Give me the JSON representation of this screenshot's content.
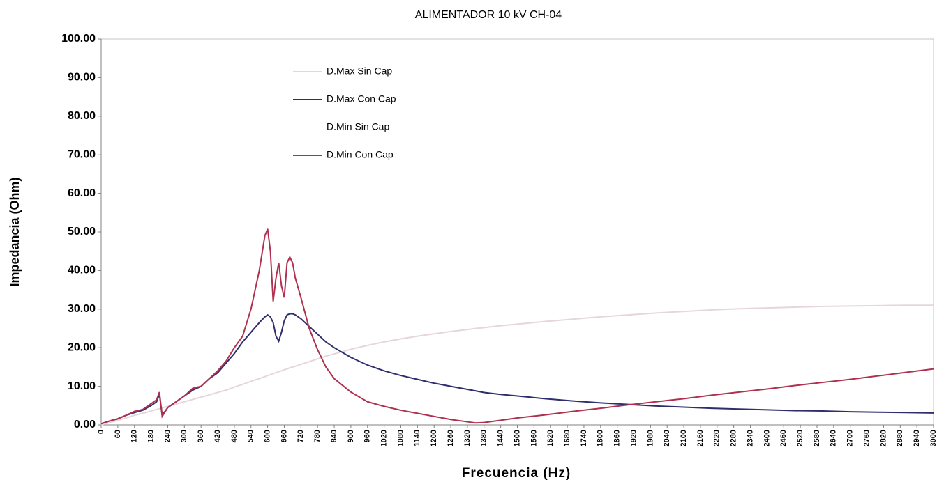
{
  "chart_data": {
    "type": "line",
    "title": "ALIMENTADOR 10 kV  CH-04",
    "x_label": "Frecuencia (Hz)",
    "y_label": "Impedancia (Ohm)",
    "x": [
      0,
      30,
      60,
      90,
      120,
      150,
      180,
      200,
      210,
      220,
      240,
      270,
      300,
      330,
      360,
      390,
      420,
      450,
      480,
      510,
      540,
      570,
      590,
      600,
      610,
      620,
      630,
      640,
      650,
      660,
      670,
      680,
      690,
      700,
      720,
      750,
      780,
      810,
      840,
      900,
      960,
      1020,
      1080,
      1140,
      1200,
      1260,
      1320,
      1350,
      1380,
      1440,
      1500,
      1600,
      1700,
      1800,
      1900,
      2000,
      2100,
      2200,
      2300,
      2400,
      2500,
      2600,
      2700,
      2800,
      2900,
      3000
    ],
    "series": [
      {
        "name": "D.Max Sin Cap",
        "color": "#e6d6da",
        "values": [
          0,
          0.6,
          1.2,
          1.8,
          2.5,
          3,
          3.6,
          4,
          4.2,
          4.4,
          4.8,
          5.4,
          6,
          6.6,
          7.2,
          7.8,
          8.4,
          9,
          9.8,
          10.5,
          11.3,
          12,
          12.5,
          12.8,
          13,
          13.3,
          13.5,
          13.8,
          14,
          14.3,
          14.5,
          14.8,
          15,
          15.2,
          15.7,
          16.4,
          17.1,
          17.8,
          18.4,
          19.6,
          20.6,
          21.5,
          22.3,
          23,
          23.6,
          24.2,
          24.7,
          25,
          25.2,
          25.7,
          26.1,
          26.8,
          27.4,
          28,
          28.5,
          29,
          29.4,
          29.8,
          30.1,
          30.3,
          30.5,
          30.7,
          30.8,
          30.9,
          31,
          31
        ]
      },
      {
        "name": "D.Max Con Cap",
        "color": "#2e2e6e",
        "values": [
          0.3,
          1,
          1.6,
          2.5,
          3.2,
          3.8,
          5,
          6,
          8,
          2.5,
          4.5,
          6,
          7.5,
          9,
          10,
          12,
          13.5,
          16,
          18.5,
          21.5,
          24,
          26.5,
          28,
          28.5,
          28,
          26.5,
          23,
          21.7,
          24,
          27,
          28.5,
          28.8,
          28.8,
          28.5,
          27.5,
          25.5,
          23.5,
          21.5,
          20,
          17.5,
          15.5,
          14,
          12.8,
          11.8,
          10.8,
          10,
          9.2,
          8.8,
          8.4,
          7.9,
          7.5,
          6.8,
          6.2,
          5.7,
          5.3,
          4.9,
          4.6,
          4.3,
          4.1,
          3.9,
          3.7,
          3.6,
          3.4,
          3.3,
          3.2,
          3.1
        ]
      },
      {
        "name": "D.Min Sin Cap",
        "color": "#ffffff",
        "values": [
          null,
          null,
          null,
          null,
          null,
          null,
          null,
          null,
          null,
          null,
          null,
          null,
          null,
          null,
          null,
          null,
          null,
          null,
          null,
          null,
          null,
          null,
          null,
          null,
          null,
          null,
          null,
          null,
          null,
          null,
          null,
          null,
          null,
          null,
          null,
          null,
          null,
          null,
          null,
          null,
          null,
          null,
          null,
          null,
          null,
          null,
          null,
          null,
          null,
          null,
          null,
          null,
          null,
          null,
          null,
          null,
          null,
          null,
          null,
          null,
          null,
          null,
          null,
          null,
          null,
          null
        ]
      },
      {
        "name": "D.Min Con Cap",
        "color": "#b03050",
        "values": [
          0.3,
          1,
          1.6,
          2.5,
          3.5,
          4,
          5.5,
          6.5,
          8.5,
          2.2,
          4.5,
          6,
          7.5,
          9.5,
          10,
          12,
          14,
          16.5,
          20,
          23,
          30,
          40,
          49,
          50.8,
          45,
          32,
          38,
          42,
          36,
          33,
          42,
          43.5,
          42,
          38,
          33,
          25,
          19.5,
          15,
          12,
          8.5,
          6,
          4.8,
          3.8,
          3,
          2.2,
          1.4,
          0.8,
          0.5,
          0.6,
          1.2,
          1.8,
          2.6,
          3.5,
          4.3,
          5.2,
          6,
          6.8,
          7.7,
          8.5,
          9.3,
          10.2,
          11,
          11.8,
          12.7,
          13.6,
          14.5
        ]
      }
    ],
    "xlim": [
      0,
      3000
    ],
    "xticks": [
      0,
      60,
      120,
      180,
      240,
      300,
      360,
      420,
      480,
      540,
      600,
      660,
      720,
      780,
      840,
      900,
      960,
      1020,
      1080,
      1140,
      1200,
      1260,
      1320,
      1380,
      1440,
      1500,
      1560,
      1620,
      1680,
      1740,
      1800,
      1860,
      1920,
      1980,
      2040,
      2100,
      2160,
      2220,
      2280,
      2340,
      2400,
      2460,
      2520,
      2580,
      2640,
      2700,
      2760,
      2820,
      2880,
      2940,
      3000
    ],
    "ylim": [
      0,
      100
    ],
    "yticks": [
      {
        "value": 0,
        "label": "0.00"
      },
      {
        "value": 10,
        "label": "10.00"
      },
      {
        "value": 20,
        "label": "20.00"
      },
      {
        "value": 30,
        "label": "30.00"
      },
      {
        "value": 40,
        "label": "40.00"
      },
      {
        "value": 50,
        "label": "50.00"
      },
      {
        "value": 60,
        "label": "60.00"
      },
      {
        "value": 70,
        "label": "70.00"
      },
      {
        "value": 80,
        "label": "80.00"
      },
      {
        "value": 90,
        "label": "90.00"
      },
      {
        "value": 100,
        "label": "100.00"
      }
    ],
    "grid": false,
    "legend": "upper-left"
  }
}
